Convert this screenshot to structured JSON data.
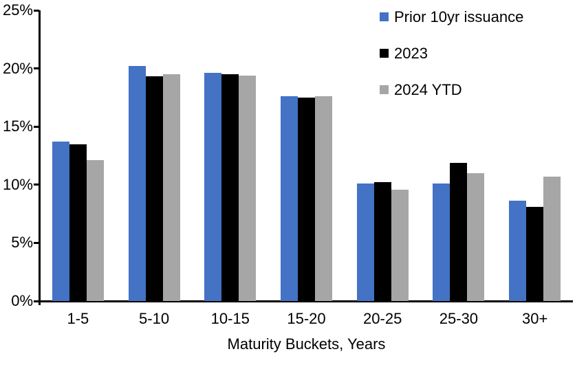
{
  "chart_data": {
    "type": "bar",
    "title": "",
    "xlabel": "Maturity Buckets, Years",
    "ylabel": "",
    "categories": [
      "1-5",
      "5-10",
      "10-15",
      "15-20",
      "20-25",
      "25-30",
      "30+"
    ],
    "series": [
      {
        "name": "Prior 10yr issuance",
        "color": "#4472C4",
        "values": [
          13.7,
          20.2,
          19.6,
          17.6,
          10.1,
          10.1,
          8.6
        ]
      },
      {
        "name": "2023",
        "color": "#000000",
        "values": [
          13.5,
          19.3,
          19.5,
          17.5,
          10.2,
          11.9,
          8.1
        ]
      },
      {
        "name": "2024 YTD",
        "color": "#A6A6A6",
        "values": [
          12.1,
          19.5,
          19.4,
          17.6,
          9.6,
          11.0,
          10.7
        ]
      }
    ],
    "ylim": [
      0,
      25
    ],
    "ytick_step": 5,
    "ytick_labels": [
      "0%",
      "5%",
      "10%",
      "15%",
      "20%",
      "25%"
    ],
    "grid": false,
    "legend_position": "top-right",
    "axis_color": "#000000",
    "text_color": "#000000",
    "background_color": "#FFFFFF"
  }
}
